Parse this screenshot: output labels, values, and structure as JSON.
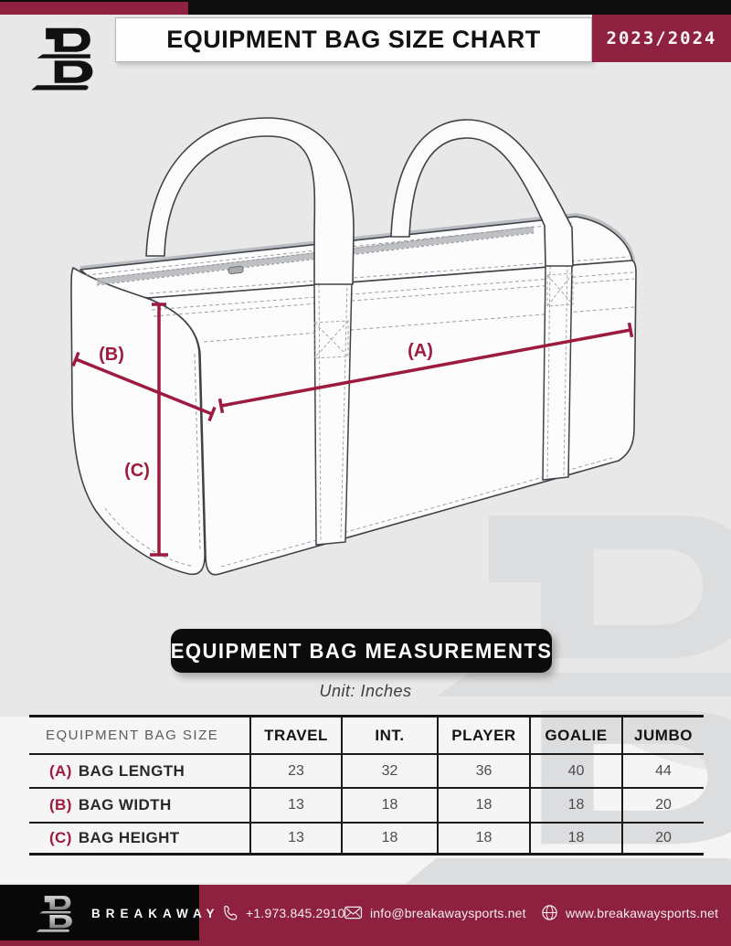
{
  "header": {
    "title": "EQUIPMENT BAG SIZE CHART",
    "season": "2023/2024"
  },
  "diagram": {
    "label_a": "(A)",
    "label_b": "(B)",
    "label_c": "(C)"
  },
  "measurements": {
    "badge": "EQUIPMENT BAG MEASUREMENTS",
    "unit": "Unit: Inches"
  },
  "table": {
    "headers": [
      "EQUIPMENT BAG SIZE",
      "TRAVEL",
      "INT.",
      "PLAYER",
      "GOALIE",
      "JUMBO"
    ],
    "rows": [
      {
        "key": "(A)",
        "label": "BAG LENGTH",
        "values": [
          "23",
          "32",
          "36",
          "40",
          "44"
        ]
      },
      {
        "key": "(B)",
        "label": "BAG WIDTH",
        "values": [
          "13",
          "18",
          "18",
          "18",
          "20"
        ]
      },
      {
        "key": "(C)",
        "label": "BAG HEIGHT",
        "values": [
          "13",
          "18",
          "18",
          "18",
          "20"
        ]
      }
    ]
  },
  "chart_data": {
    "type": "table",
    "title": "EQUIPMENT BAG MEASUREMENTS",
    "unit": "Inches",
    "columns": [
      "TRAVEL",
      "INT.",
      "PLAYER",
      "GOALIE",
      "JUMBO"
    ],
    "series": [
      {
        "name": "BAG LENGTH (A)",
        "values": [
          23,
          32,
          36,
          40,
          44
        ]
      },
      {
        "name": "BAG WIDTH (B)",
        "values": [
          13,
          18,
          18,
          18,
          20
        ]
      },
      {
        "name": "BAG HEIGHT (C)",
        "values": [
          13,
          18,
          18,
          18,
          20
        ]
      }
    ]
  },
  "footer": {
    "brand": "BREAKAWAY",
    "phone": "+1.973.845.2910",
    "email": "info@breakawaysports.net",
    "website": "www.breakawaysports.net"
  },
  "colors": {
    "maroon": "#8e2040",
    "maroon_bright": "#9c1b3f",
    "black": "#0e0e0f",
    "page_bg": "#e8e8e9",
    "watermark": "#dcddde"
  }
}
